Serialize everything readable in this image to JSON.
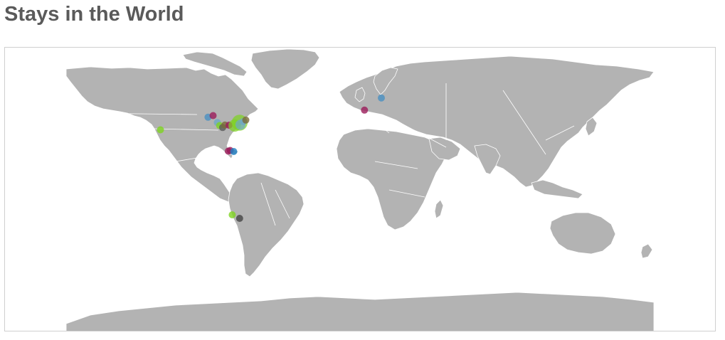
{
  "page": {
    "title": "Stays in the World"
  },
  "map": {
    "land_color": "#b3b3b3",
    "border_color": "#ffffff",
    "frame_border_color": "#cfcfcf",
    "stays": [
      {
        "lon": -122.4,
        "lat": 37.8,
        "size": 1,
        "color": "#7ed321"
      },
      {
        "lon": -93.3,
        "lat": 44.9,
        "size": 1,
        "color": "#4a90c2"
      },
      {
        "lon": -90.2,
        "lat": 45.8,
        "size": 1,
        "color": "#9b1b5a"
      },
      {
        "lon": -87.6,
        "lat": 41.9,
        "size": 1,
        "color": "#6fa8c7"
      },
      {
        "lon": -86.2,
        "lat": 40.2,
        "size": 1,
        "color": "#7ed321"
      },
      {
        "lon": -84.4,
        "lat": 39.1,
        "size": 1,
        "color": "#5a5a5a"
      },
      {
        "lon": -83.0,
        "lat": 40.5,
        "size": 1,
        "color": "#7a6a3a"
      },
      {
        "lon": -80.5,
        "lat": 40.4,
        "size": 1,
        "color": "#9b1b5a"
      },
      {
        "lon": -77.0,
        "lat": 40.2,
        "size": 3,
        "color": "#7ed321"
      },
      {
        "lon": -74.0,
        "lat": 41.8,
        "size": 5,
        "color": "#7ed321"
      },
      {
        "lon": -73.5,
        "lat": 40.7,
        "size": 2,
        "color": "#6fa8c7"
      },
      {
        "lon": -71.8,
        "lat": 42.4,
        "size": 1,
        "color": "#6fa8c7"
      },
      {
        "lon": -70.2,
        "lat": 43.3,
        "size": 1,
        "color": "#7a6a3a"
      },
      {
        "lon": -80.9,
        "lat": 25.8,
        "size": 1,
        "color": "#9b1b5a"
      },
      {
        "lon": -79.8,
        "lat": 26.2,
        "size": 1,
        "color": "#9b1b5a"
      },
      {
        "lon": -77.6,
        "lat": 25.6,
        "size": 1,
        "color": "#1e7fc4"
      },
      {
        "lon": -78.5,
        "lat": -10.0,
        "size": 1,
        "color": "#7ed321"
      },
      {
        "lon": -74.0,
        "lat": -12.0,
        "size": 1,
        "color": "#444444"
      },
      {
        "lon": 2.3,
        "lat": 48.9,
        "size": 1,
        "color": "#9b1b5a"
      },
      {
        "lon": 12.6,
        "lat": 55.7,
        "size": 1,
        "color": "#4a90c2"
      }
    ]
  }
}
